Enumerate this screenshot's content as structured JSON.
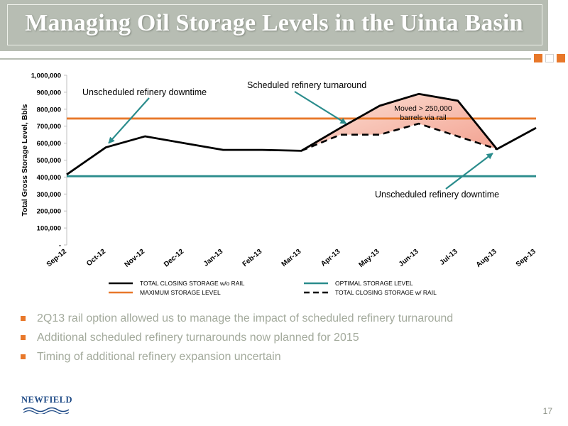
{
  "slide": {
    "title": "Managing Oil Storage Levels in the Uinta Basin",
    "page_number": "17",
    "logo_text": "NEWFIELD",
    "bullets": [
      "2Q13 rail option allowed us to manage the impact of scheduled refinery turnaround",
      "Additional scheduled refinery turnarounds now planned for 2015",
      "Timing of additional refinery expansion uncertain"
    ],
    "colors": {
      "title_bar": "#b7bdb3",
      "accent": "#e8782a",
      "bullet_text": "#a3aa9c"
    }
  },
  "chart_data": {
    "type": "line",
    "title": "",
    "xlabel": "",
    "ylabel": "Total Gross Storage Level, Bbls",
    "categories": [
      "Sep-12",
      "Oct-12",
      "Nov-12",
      "Dec-12",
      "Jan-13",
      "Feb-13",
      "Mar-13",
      "Apr-13",
      "May-13",
      "Jun-13",
      "Jul-13",
      "Aug-13",
      "Sep-13"
    ],
    "y_tick_labels": [
      "-",
      "100,000",
      "200,000",
      "300,000",
      "400,000",
      "500,000",
      "600,000",
      "700,000",
      "800,000",
      "900,000",
      "1,000,000"
    ],
    "ylim": [
      0,
      1000000
    ],
    "grid": false,
    "legend_position": "bottom",
    "series": [
      {
        "name": "TOTAL CLOSING STORAGE w/o RAIL",
        "color": "#000000",
        "style": "solid",
        "values": [
          415000,
          575000,
          640000,
          600000,
          560000,
          560000,
          555000,
          690000,
          820000,
          890000,
          850000,
          565000,
          690000
        ]
      },
      {
        "name": "OPTIMAL STORAGE LEVEL",
        "color": "#2a8c8c",
        "style": "solid",
        "values": [
          405000,
          405000,
          405000,
          405000,
          405000,
          405000,
          405000,
          405000,
          405000,
          405000,
          405000,
          405000,
          405000
        ]
      },
      {
        "name": "MAXIMUM STORAGE LEVEL",
        "color": "#e8782a",
        "style": "solid",
        "values": [
          745000,
          745000,
          745000,
          745000,
          745000,
          745000,
          745000,
          745000,
          745000,
          745000,
          745000,
          745000,
          745000
        ]
      },
      {
        "name": "TOTAL CLOSING STORAGE w/ RAIL",
        "color": "#000000",
        "style": "dashed",
        "values": [
          null,
          null,
          null,
          null,
          null,
          null,
          555000,
          650000,
          650000,
          715000,
          640000,
          565000,
          null
        ]
      }
    ],
    "shaded_region": {
      "between": [
        "TOTAL CLOSING STORAGE w/o RAIL",
        "TOTAL CLOSING STORAGE w/ RAIL"
      ],
      "from": "Mar-13",
      "to": "Aug-13"
    },
    "annotations": [
      {
        "text": "Unscheduled refinery downtime",
        "color": "#2a8c8c",
        "points_to": "Oct-12"
      },
      {
        "text": "Scheduled refinery turnaround",
        "color": "#2a8c8c",
        "points_to": "Apr-13"
      },
      {
        "text": "Unscheduled refinery downtime",
        "color": "#2a8c8c",
        "points_to": "Aug-13"
      },
      {
        "text_lines": [
          "Moved > 250,000",
          "barrels via rail"
        ],
        "color": "#000000"
      }
    ]
  }
}
